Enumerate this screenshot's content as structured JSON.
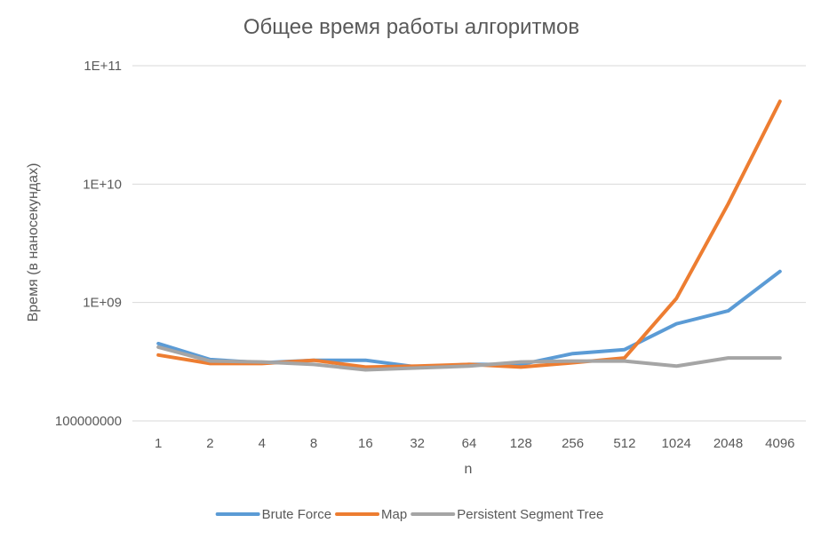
{
  "chart_data": {
    "type": "line",
    "title": "Общее время работы алгоритмов",
    "xlabel": "n",
    "ylabel": "Время (в наносекундах)",
    "y_scale": "log",
    "ylim": [
      100000000,
      100000000000
    ],
    "y_ticks": [
      {
        "value": 100000000,
        "label": "100000000"
      },
      {
        "value": 1000000000,
        "label": "1E+09"
      },
      {
        "value": 10000000000,
        "label": "1E+10"
      },
      {
        "value": 100000000000,
        "label": "1E+11"
      }
    ],
    "categories": [
      "1",
      "2",
      "4",
      "8",
      "16",
      "32",
      "64",
      "128",
      "256",
      "512",
      "1024",
      "2048",
      "4096"
    ],
    "grid": true,
    "legend_position": "bottom",
    "series": [
      {
        "name": "Brute Force",
        "color": "#5b9bd5",
        "values": [
          450000000,
          330000000,
          310000000,
          325000000,
          325000000,
          285000000,
          300000000,
          300000000,
          370000000,
          400000000,
          660000000,
          850000000,
          1830000000
        ]
      },
      {
        "name": "Map",
        "color": "#ed7d31",
        "values": [
          360000000,
          305000000,
          305000000,
          325000000,
          285000000,
          290000000,
          300000000,
          285000000,
          310000000,
          340000000,
          1080000000,
          6800000000,
          50000000000
        ]
      },
      {
        "name": "Persistent Segment Tree",
        "color": "#a5a5a5",
        "values": [
          420000000,
          320000000,
          315000000,
          300000000,
          270000000,
          280000000,
          290000000,
          315000000,
          320000000,
          320000000,
          290000000,
          340000000,
          340000000
        ]
      }
    ]
  }
}
